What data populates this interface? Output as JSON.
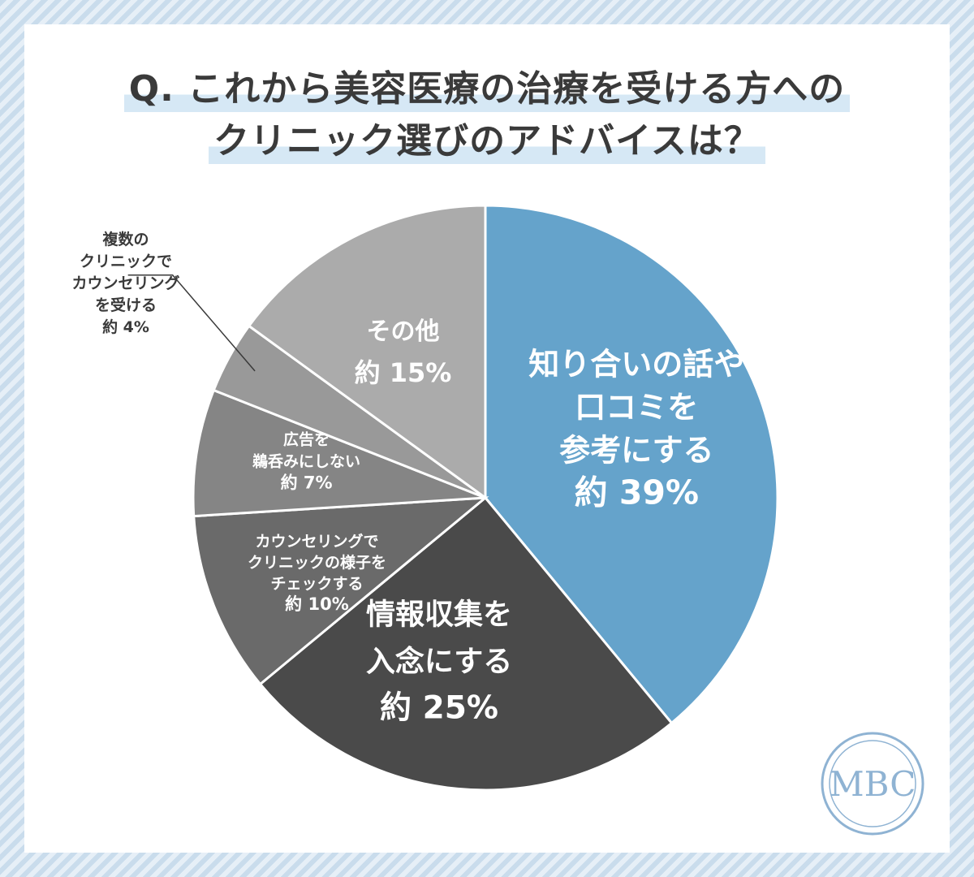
{
  "title": {
    "line1": "Q. これから美容医療の治療を受ける方への",
    "line2": "クリニック選びのアドバイスは？"
  },
  "chart_data": {
    "type": "pie",
    "unit": "%",
    "slices": [
      {
        "label": "知り合いの話や口コミを参考にする",
        "label_lines": [
          "知り合いの話や",
          "口コミを",
          "参考にする"
        ],
        "value_text": "約 39%",
        "value": 39,
        "color": "#65a3cb"
      },
      {
        "label": "情報収集を入念にする",
        "label_lines": [
          "情報収集を",
          "入念にする"
        ],
        "value_text": "約 25%",
        "value": 25,
        "color": "#4a4a4a"
      },
      {
        "label": "カウンセリングでクリニックの様子をチェックする",
        "label_lines": [
          "カウンセリングで",
          "クリニックの様子を",
          "チェックする"
        ],
        "value_text": "約 10%",
        "value": 10,
        "color": "#6a6a6a"
      },
      {
        "label": "広告を鵜呑みにしない",
        "label_lines": [
          "広告を",
          "鵜呑みにしない"
        ],
        "value_text": "約 7%",
        "value": 7,
        "color": "#858585"
      },
      {
        "label": "複数のクリニックでカウンセリングを受ける",
        "label_lines": [
          "複数の",
          "クリニックで",
          "カウンセリング",
          "を受ける"
        ],
        "value_text": "約 4%",
        "value": 4,
        "color": "#999999"
      },
      {
        "label": "その他",
        "label_lines": [
          "その他"
        ],
        "value_text": "約 15%",
        "value": 15,
        "color": "#ababab"
      }
    ]
  },
  "logo": {
    "text": "MBC",
    "color": "#8fb3d3"
  }
}
